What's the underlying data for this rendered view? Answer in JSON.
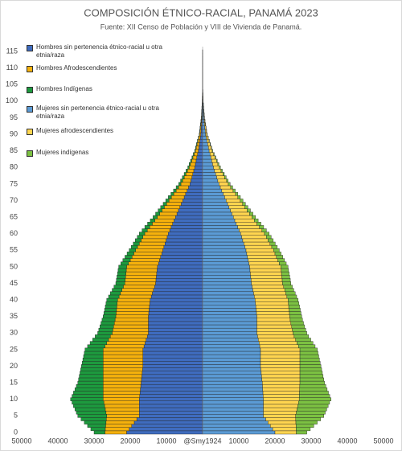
{
  "chart_data": {
    "type": "pyramid",
    "title": "COMPOSICIÓN ÉTNICO-RACIAL, PANAMÁ 2023",
    "subtitle": "Fuente: XII Censo de Población y VIII de Vivienda de Panamá.",
    "annotation": "@Smy1924",
    "categories": [
      0,
      null,
      null,
      null,
      null,
      5,
      null,
      null,
      null,
      null,
      10,
      null,
      null,
      null,
      null,
      15,
      null,
      null,
      null,
      null,
      20,
      null,
      null,
      null,
      null,
      25,
      null,
      null,
      null,
      null,
      30,
      null,
      null,
      null,
      null,
      35,
      null,
      null,
      null,
      null,
      40,
      null,
      null,
      null,
      null,
      45,
      null,
      null,
      null,
      null,
      50,
      null,
      null,
      null,
      null,
      55,
      null,
      null,
      null,
      null,
      60,
      null,
      null,
      null,
      null,
      65,
      null,
      null,
      null,
      null,
      70,
      null,
      null,
      null,
      null,
      75,
      null,
      null,
      null,
      null,
      80,
      null,
      null,
      null,
      null,
      85,
      null,
      null,
      null,
      null,
      90,
      null,
      null,
      null,
      null,
      95,
      null,
      null,
      null,
      null,
      100,
      null,
      null,
      null,
      null,
      105,
      null,
      null,
      null,
      null,
      110,
      null,
      null,
      null,
      null,
      115
    ],
    "xlim": [
      -50000,
      50000
    ],
    "xticks": [
      {
        "value": -50000,
        "label": "50000"
      },
      {
        "value": -40000,
        "label": "40000"
      },
      {
        "value": -30000,
        "label": "30000"
      },
      {
        "value": -20000,
        "label": "20000"
      },
      {
        "value": -10000,
        "label": "10000"
      },
      10000,
      20000,
      30000,
      40000,
      50000
    ],
    "grid": false,
    "series": [
      {
        "name": "Hombres sin pertenencia étnico-racial u otra etnia/raza",
        "color": "#3f6cbf",
        "values": [
          -21000,
          -20300,
          -19600,
          -18900,
          -18200,
          -17500,
          -17500,
          -17500,
          -17500,
          -17500,
          -17500,
          -17400,
          -17300,
          -17200,
          -17100,
          -17000,
          -16900,
          -16800,
          -16700,
          -16600,
          -16500,
          -16500,
          -16500,
          -16500,
          -16500,
          -16500,
          -16200,
          -15900,
          -15600,
          -15300,
          -15000,
          -15000,
          -15000,
          -15000,
          -15000,
          -15000,
          -14900,
          -14800,
          -14700,
          -14600,
          -14500,
          -14200,
          -13900,
          -13600,
          -13300,
          -13000,
          -12900,
          -12800,
          -12700,
          -12600,
          -12500,
          -12200,
          -11900,
          -11600,
          -11300,
          -11000,
          -10700,
          -10400,
          -10100,
          -9800,
          -9500,
          -9100,
          -8700,
          -8300,
          -7900,
          -7500,
          -7100,
          -6700,
          -6300,
          -5900,
          -5500,
          -5100,
          -4700,
          -4300,
          -3900,
          -3500,
          -3240,
          -2980,
          -2720,
          -2460,
          -2200,
          -2000,
          -1800,
          -1600,
          -1400,
          -1200,
          -1060,
          -920,
          -780,
          -640,
          -500,
          -440,
          -380,
          -320,
          -260,
          -200,
          -172,
          -144,
          -116,
          -88,
          -60,
          -52,
          -44,
          -36,
          -28,
          -20,
          -17,
          -14,
          -11,
          -8,
          -5,
          -4,
          -3,
          -2,
          -2,
          -1
        ]
      },
      {
        "name": "Hombres Afrodescendientes",
        "color": "#f5b10c",
        "values": [
          -6000,
          -6600,
          -7200,
          -7800,
          -8400,
          -9000,
          -9200,
          -9400,
          -9600,
          -9800,
          -10000,
          -10100,
          -10200,
          -10300,
          -10400,
          -10500,
          -10600,
          -10700,
          -10800,
          -10900,
          -11000,
          -11000,
          -11000,
          -11000,
          -11000,
          -11000,
          -10800,
          -10600,
          -10400,
          -10200,
          -10000,
          -9800,
          -9600,
          -9400,
          -9200,
          -9000,
          -9000,
          -9000,
          -9000,
          -9000,
          -9000,
          -8900,
          -8800,
          -8700,
          -8600,
          -8500,
          -8500,
          -8500,
          -8500,
          -8500,
          -8500,
          -8300,
          -8100,
          -7900,
          -7700,
          -7500,
          -7300,
          -7100,
          -6900,
          -6700,
          -6500,
          -6200,
          -5900,
          -5600,
          -5300,
          -5000,
          -4760,
          -4520,
          -4280,
          -4040,
          -3800,
          -3540,
          -3280,
          -3020,
          -2760,
          -2500,
          -2300,
          -2100,
          -1900,
          -1700,
          -1500,
          -1360,
          -1220,
          -1080,
          -940,
          -800,
          -710,
          -620,
          -530,
          -440,
          -350,
          -304,
          -258,
          -212,
          -166,
          -120,
          -104,
          -88,
          -72,
          -56,
          -40,
          -34,
          -28,
          -22,
          -16,
          -10,
          -9,
          -7,
          -6,
          -4,
          -3,
          -3,
          -2,
          -2,
          -1,
          -1
        ]
      },
      {
        "name": "Hombres Indígenas",
        "color": "#1d9a3e",
        "values": [
          -3000,
          -4000,
          -5000,
          -6000,
          -7000,
          -8000,
          -8200,
          -8400,
          -8600,
          -8800,
          -9000,
          -8600,
          -8200,
          -7800,
          -7400,
          -7000,
          -6800,
          -6600,
          -6400,
          -6200,
          -6000,
          -5800,
          -5600,
          -5400,
          -5200,
          -5000,
          -4800,
          -4600,
          -4400,
          -4200,
          -4000,
          -3900,
          -3800,
          -3700,
          -3600,
          -3500,
          -3400,
          -3300,
          -3200,
          -3100,
          -3000,
          -2900,
          -2800,
          -2700,
          -2600,
          -2500,
          -2440,
          -2380,
          -2320,
          -2260,
          -2200,
          -2120,
          -2040,
          -1960,
          -1880,
          -1800,
          -1740,
          -1680,
          -1620,
          -1560,
          -1500,
          -1440,
          -1380,
          -1320,
          -1260,
          -1200,
          -1140,
          -1080,
          -1020,
          -960,
          -900,
          -840,
          -780,
          -720,
          -660,
          -600,
          -560,
          -520,
          -480,
          -440,
          -400,
          -360,
          -320,
          -280,
          -240,
          -200,
          -180,
          -160,
          -140,
          -120,
          -100,
          -88,
          -76,
          -64,
          -52,
          -40,
          -35,
          -30,
          -25,
          -20,
          -15,
          -13,
          -11,
          -9,
          -7,
          -5,
          -4,
          -4,
          -3,
          -3,
          -2,
          -2,
          -1,
          -1,
          -1,
          0
        ]
      },
      {
        "name": "Mujeres sin pertenencia étnico-racial u otra etnia/raza",
        "color": "#5b9bd5",
        "values": [
          20000,
          19360,
          18720,
          18080,
          17440,
          16800,
          16800,
          16800,
          16800,
          16800,
          16800,
          16740,
          16680,
          16620,
          16560,
          16500,
          16400,
          16300,
          16200,
          16100,
          16000,
          16000,
          16000,
          16000,
          16000,
          16000,
          15800,
          15600,
          15400,
          15200,
          15000,
          15000,
          15000,
          15000,
          15000,
          15000,
          14900,
          14800,
          14700,
          14600,
          14500,
          14300,
          14100,
          13900,
          13700,
          13500,
          13400,
          13300,
          13200,
          13100,
          13000,
          12800,
          12600,
          12400,
          12200,
          12000,
          11700,
          11400,
          11100,
          10800,
          10500,
          10100,
          9700,
          9300,
          8900,
          8500,
          8100,
          7700,
          7300,
          6900,
          6500,
          6100,
          5700,
          5300,
          4900,
          4500,
          4200,
          3900,
          3600,
          3300,
          3000,
          2760,
          2520,
          2280,
          2040,
          1800,
          1600,
          1400,
          1200,
          1000,
          800,
          710,
          620,
          530,
          440,
          350,
          300,
          250,
          200,
          150,
          100,
          86,
          72,
          58,
          44,
          30,
          26,
          21,
          17,
          12,
          8,
          7,
          5,
          4,
          3,
          2
        ]
      },
      {
        "name": "Mujeres afrodescendientes",
        "color": "#ffd54f",
        "values": [
          5900,
          6500,
          7100,
          7700,
          8300,
          8900,
          9100,
          9300,
          9500,
          9700,
          9900,
          10000,
          10100,
          10200,
          10300,
          10400,
          10500,
          10600,
          10700,
          10800,
          10900,
          10900,
          10900,
          10900,
          10900,
          10900,
          10700,
          10500,
          10300,
          10100,
          10000,
          9800,
          9600,
          9400,
          9200,
          9100,
          9100,
          9100,
          9100,
          9100,
          9100,
          9000,
          8900,
          8800,
          8700,
          8600,
          8600,
          8600,
          8600,
          8600,
          8600,
          8400,
          8200,
          8000,
          7800,
          7600,
          7400,
          7200,
          7000,
          6800,
          6600,
          6300,
          6000,
          5700,
          5400,
          5100,
          4860,
          4620,
          4380,
          4140,
          3900,
          3640,
          3380,
          3120,
          2860,
          2600,
          2400,
          2200,
          2000,
          1800,
          1600,
          1450,
          1300,
          1150,
          1000,
          850,
          760,
          670,
          580,
          490,
          400,
          350,
          300,
          250,
          200,
          150,
          130,
          110,
          90,
          70,
          50,
          42,
          34,
          26,
          18,
          12,
          10,
          8,
          6,
          5,
          4,
          3,
          2,
          2,
          1,
          1
        ]
      },
      {
        "name": "Mujeres indígenas",
        "color": "#7cc142",
        "values": [
          2900,
          3900,
          4900,
          5900,
          6900,
          7800,
          8000,
          8200,
          8400,
          8600,
          8800,
          8400,
          8000,
          7600,
          7200,
          6800,
          6600,
          6400,
          6200,
          6000,
          5800,
          5600,
          5400,
          5200,
          5000,
          4800,
          4600,
          4400,
          4200,
          4000,
          3800,
          3700,
          3600,
          3500,
          3400,
          3300,
          3200,
          3100,
          3000,
          2900,
          2800,
          2700,
          2600,
          2500,
          2400,
          2300,
          2240,
          2180,
          2120,
          2060,
          2000,
          1920,
          1840,
          1760,
          1680,
          1600,
          1540,
          1480,
          1420,
          1360,
          1300,
          1240,
          1180,
          1120,
          1060,
          1000,
          950,
          900,
          850,
          800,
          750,
          700,
          650,
          600,
          550,
          500,
          465,
          430,
          395,
          360,
          325,
          290,
          255,
          220,
          185,
          150,
          135,
          120,
          105,
          90,
          75,
          66,
          57,
          48,
          39,
          30,
          26,
          22,
          18,
          14,
          10,
          9,
          8,
          7,
          6,
          5,
          4,
          3,
          2,
          2,
          1,
          1,
          1,
          1,
          0,
          0
        ]
      }
    ]
  }
}
